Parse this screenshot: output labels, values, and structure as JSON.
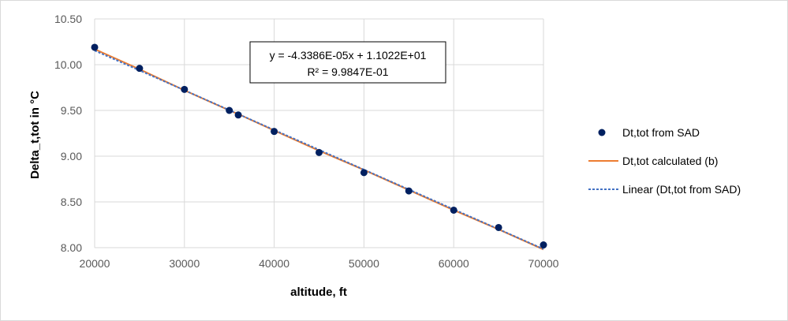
{
  "chart_data": {
    "type": "scatter",
    "title": "",
    "xlabel": "altitude, ft",
    "ylabel": "Delta_t,tot   in  °C",
    "xlim": [
      20000,
      70000
    ],
    "ylim": [
      8.0,
      10.5
    ],
    "x_ticks": [
      "20000",
      "30000",
      "40000",
      "50000",
      "60000",
      "70000"
    ],
    "y_ticks": [
      "8.00",
      "8.50",
      "9.00",
      "9.50",
      "10.00",
      "10.50"
    ],
    "grid": true,
    "legend_position": "right",
    "series": [
      {
        "name": "Dt,tot  from SAD",
        "kind": "markers",
        "color": "#002060",
        "x": [
          20000,
          25000,
          30000,
          35000,
          36000,
          40000,
          45000,
          50000,
          55000,
          60000,
          65000,
          70000
        ],
        "y": [
          10.19,
          9.96,
          9.73,
          9.5,
          9.45,
          9.27,
          9.04,
          8.82,
          8.62,
          8.41,
          8.22,
          8.03
        ]
      },
      {
        "name": "Dt,tot  calculated    (b)",
        "kind": "line",
        "color": "#ED7D31",
        "x": [
          20000,
          25000,
          30000,
          35000,
          36000,
          40000,
          45000,
          50000,
          55000,
          60000,
          65000,
          70000
        ],
        "y": [
          10.17,
          9.95,
          9.72,
          9.5,
          9.46,
          9.28,
          9.06,
          8.85,
          8.63,
          8.41,
          8.2,
          7.98
        ]
      },
      {
        "name": "Linear (Dt,tot  from SAD)",
        "kind": "trendline",
        "color": "#4472C4",
        "x": [
          20000,
          70000
        ],
        "y": [
          10.1543,
          7.985
        ]
      }
    ],
    "trendline_label": {
      "equation": "y = -4.3386E-05x + 1.1022E+01",
      "r_squared": "R² = 9.9847E-01"
    }
  }
}
